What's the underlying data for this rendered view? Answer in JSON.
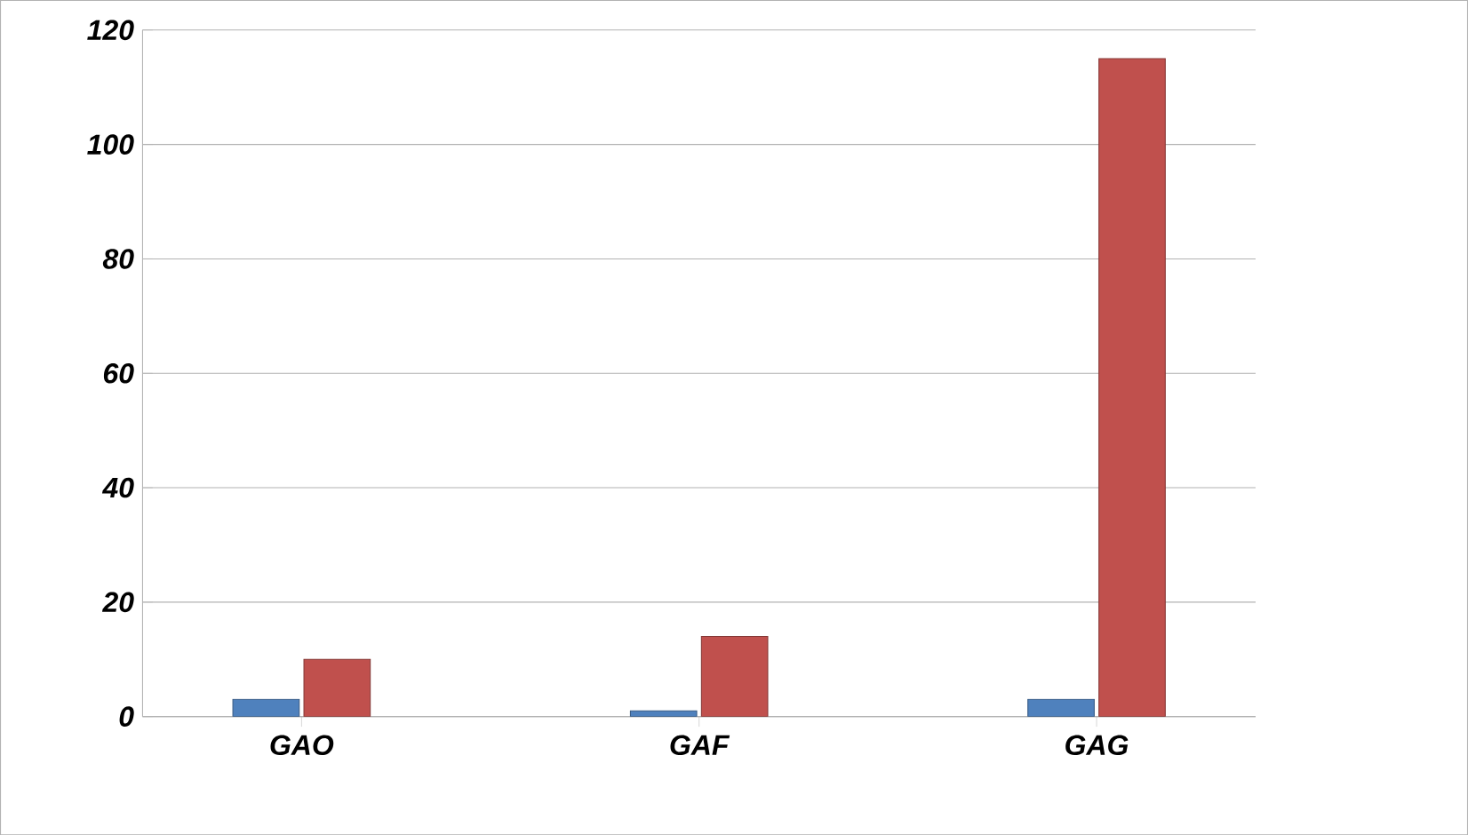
{
  "chart_data": {
    "type": "bar",
    "categories": [
      "GAO",
      "GAF",
      "GAG"
    ],
    "series": [
      {
        "color": "#4f81bd",
        "values": [
          3,
          1,
          3
        ]
      },
      {
        "color": "#c0504d",
        "values": [
          10,
          14,
          115
        ]
      }
    ],
    "ylim": [
      0,
      120
    ],
    "yticks": [
      0,
      20,
      40,
      60,
      80,
      100,
      120
    ],
    "grid": "y"
  }
}
